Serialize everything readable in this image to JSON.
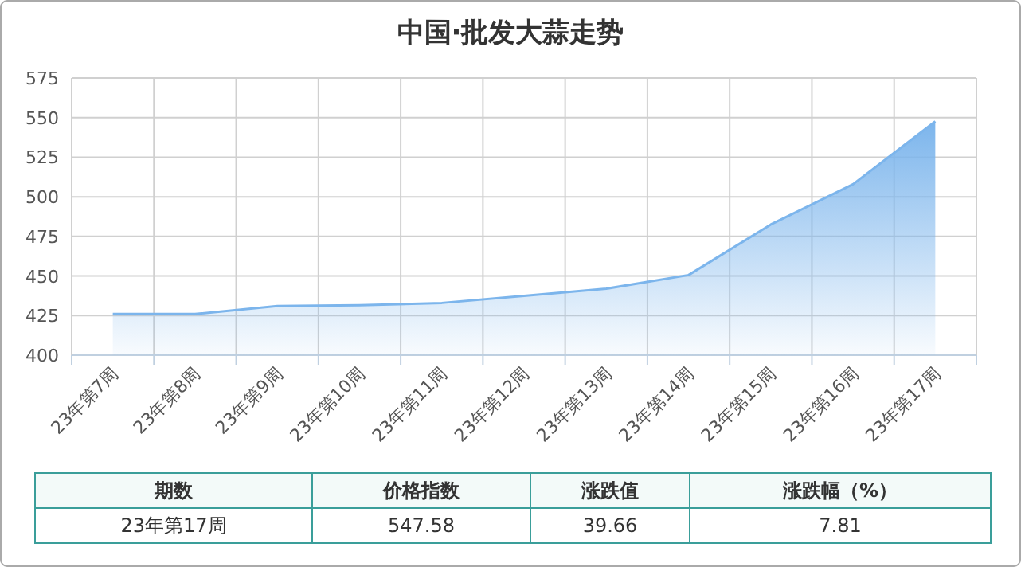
{
  "chart_data": {
    "type": "area",
    "title": "中国·批发大蒜走势",
    "categories": [
      "23年第7周",
      "23年第8周",
      "23年第9周",
      "23年第10周",
      "23年第11周",
      "23年第12周",
      "23年第13周",
      "23年第14周",
      "23年第15周",
      "23年第16周",
      "23年第17周"
    ],
    "values": [
      426,
      426,
      431,
      431.5,
      433,
      437.5,
      442,
      450.6,
      482.5,
      507.92,
      547.58
    ],
    "color": "#7cb5ec",
    "ylim": [
      400,
      575
    ],
    "yticks": [
      400,
      425,
      450,
      475,
      500,
      525,
      550,
      575
    ],
    "grid": true,
    "marker": "none",
    "annotations": [
      "期数",
      "价格指数",
      "涨跌值",
      "涨跌幅（%）",
      "23年第17周",
      "547.58",
      "39.66",
      "7.81"
    ]
  }
}
